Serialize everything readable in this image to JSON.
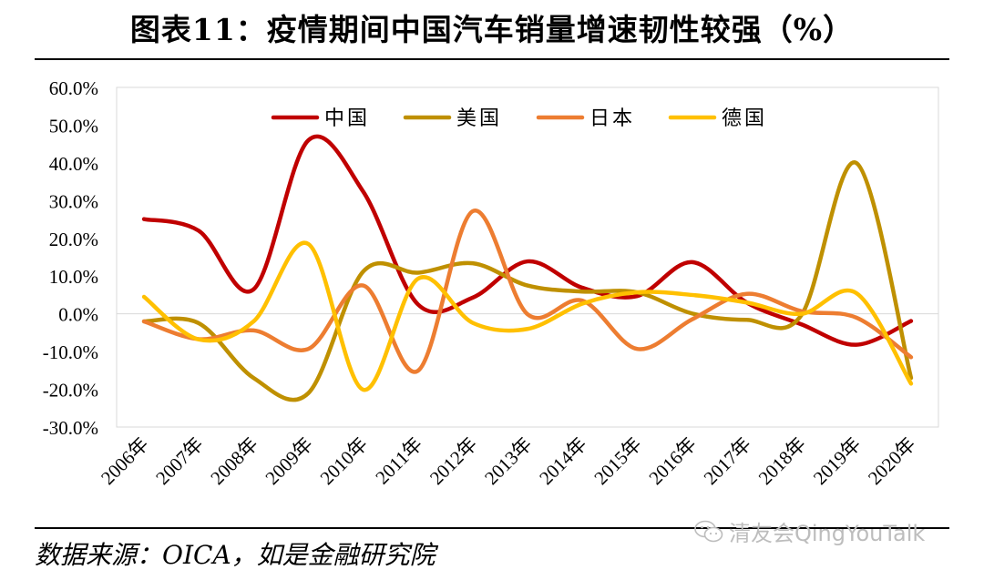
{
  "title": "图表11：疫情期间中国汽车销量增速韧性较强（%）",
  "source": "数据来源：OICA，如是金融研究院",
  "watermark": "清友会QingYouTalk",
  "chart_data": {
    "type": "line",
    "smooth": true,
    "categories": [
      "2006年",
      "2007年",
      "2008年",
      "2009年",
      "2010年",
      "2011年",
      "2012年",
      "2013年",
      "2014年",
      "2015年",
      "2016年",
      "2017年",
      "2018年",
      "2019年",
      "2020年"
    ],
    "ylim": [
      -30,
      60
    ],
    "yticks": [
      60,
      50,
      40,
      30,
      20,
      10,
      0,
      -10,
      -20,
      -30
    ],
    "ytick_labels": [
      "60.0%",
      "50.0%",
      "40.0%",
      "30.0%",
      "20.0%",
      "10.0%",
      "0.0%",
      "-10.0%",
      "-20.0%",
      "-30.0%"
    ],
    "legend_position": "top-center",
    "grid": false,
    "series": [
      {
        "name": "中国",
        "color": "#c00000",
        "values": [
          25.1,
          22.0,
          6.5,
          46.0,
          32.4,
          2.5,
          4.3,
          13.9,
          6.9,
          4.7,
          13.7,
          3.0,
          -2.8,
          -8.2,
          -1.9
        ]
      },
      {
        "name": "美国",
        "color": "#bf9000",
        "values": [
          -2.0,
          -2.5,
          -17.0,
          -21.0,
          11.2,
          10.9,
          13.4,
          7.5,
          5.9,
          5.7,
          0.1,
          -1.6,
          -0.3,
          40.0,
          -17.0
        ]
      },
      {
        "name": "日本",
        "color": "#ed7d31",
        "values": [
          -2.0,
          -6.7,
          -4.4,
          -9.3,
          7.5,
          -15.1,
          27.2,
          -0.1,
          3.5,
          -9.3,
          -1.5,
          5.3,
          0.7,
          -1.0,
          -11.5
        ]
      },
      {
        "name": "德国",
        "color": "#ffc000",
        "values": [
          4.5,
          -6.8,
          -2.0,
          18.5,
          -20.1,
          9.3,
          -2.4,
          -4.0,
          2.7,
          5.7,
          5.0,
          3.0,
          0.0,
          5.5,
          -18.5
        ]
      }
    ]
  }
}
